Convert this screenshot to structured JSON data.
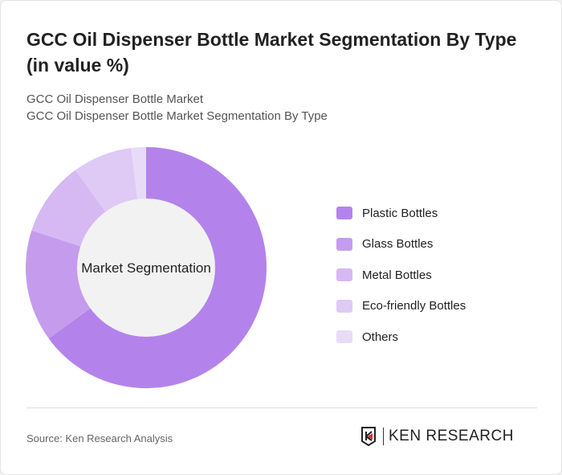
{
  "title": "GCC Oil Dispenser Bottle Market Segmentation By Type (in value %)",
  "subtitle_1": "GCC Oil Dispenser Bottle Market",
  "subtitle_2": "GCC Oil Dispenser Bottle Market Segmentation By Type",
  "source": "Source: Ken Research Analysis",
  "logo_text": "KEN RESEARCH",
  "chart_data": {
    "type": "pie",
    "donut": true,
    "center_label": "Market Segmentation",
    "categories": [
      "Plastic Bottles",
      "Glass Bottles",
      "Metal Bottles",
      "Eco-friendly Bottles",
      "Others"
    ],
    "values": [
      65,
      15,
      10,
      8,
      2
    ],
    "colors": [
      "#b383eb",
      "#c59ced",
      "#d6b9f3",
      "#dfc9f5",
      "#e8dbf8"
    ],
    "legend_position": "right"
  }
}
